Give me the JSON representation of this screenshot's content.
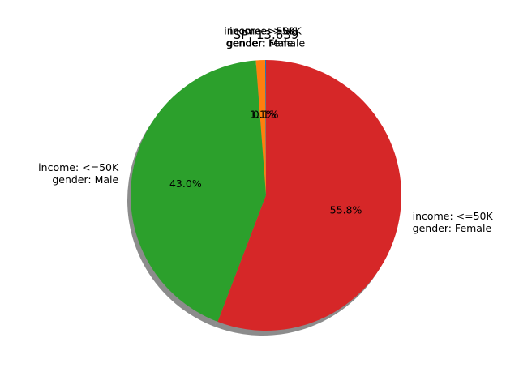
{
  "chart_data": {
    "type": "pie",
    "title": "SP: 13.639",
    "start_angle_deg": 90,
    "direction": "counterclockwise",
    "shadow": true,
    "slices": [
      {
        "label_lines": [
          "income: >50K",
          "gender: Female"
        ],
        "value": 0.1,
        "pct_label": "0.1%",
        "color": "#1f77b4"
      },
      {
        "label_lines": [
          "income: >50K",
          "gender: Male"
        ],
        "value": 1.1,
        "pct_label": "1.1%",
        "color": "#ff7f0e"
      },
      {
        "label_lines": [
          "income: <=50K",
          "gender: Male"
        ],
        "value": 43.0,
        "pct_label": "43.0%",
        "color": "#2ca02c"
      },
      {
        "label_lines": [
          "income: <=50K",
          "gender: Female"
        ],
        "value": 55.8,
        "pct_label": "55.8%",
        "color": "#d62728"
      }
    ]
  }
}
